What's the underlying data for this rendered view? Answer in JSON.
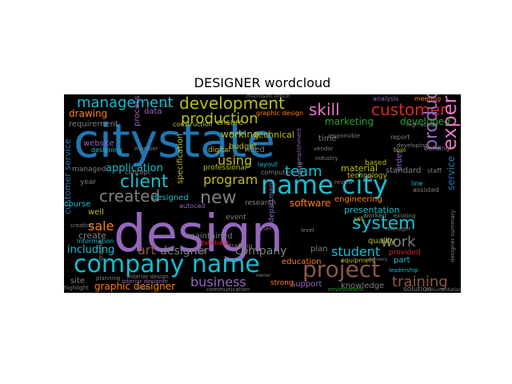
{
  "title": "DESIGNER wordcloud",
  "colors": {
    "background": "#000000",
    "palette": [
      "#1f77b4",
      "#ff7f0e",
      "#2ca02c",
      "#d62728",
      "#9467bd",
      "#8c564b",
      "#e377c2",
      "#7f7f7f",
      "#bcbd22",
      "#17becf"
    ]
  },
  "words": [
    {
      "text": "citystate",
      "color": "#1f77b4"
    },
    {
      "text": "design",
      "color": "#9467bd"
    },
    {
      "text": "company name",
      "color": "#17becf"
    },
    {
      "text": "name city",
      "color": "#17becf"
    },
    {
      "text": "project",
      "color": "#8c564b"
    },
    {
      "text": "development",
      "color": "#bcbd22"
    },
    {
      "text": "management",
      "color": "#17becf"
    },
    {
      "text": "skill",
      "color": "#e377c2"
    },
    {
      "text": "customer",
      "color": "#d62728"
    },
    {
      "text": "client",
      "color": "#17becf"
    },
    {
      "text": "production",
      "color": "#bcbd22"
    },
    {
      "text": "system",
      "color": "#17becf"
    },
    {
      "text": "experience",
      "color": "#e377c2"
    },
    {
      "text": "product",
      "color": "#9467bd"
    },
    {
      "text": "created",
      "color": "#7f7f7f"
    },
    {
      "text": "new",
      "color": "#7f7f7f"
    },
    {
      "text": "team",
      "color": "#17becf"
    },
    {
      "text": "sale",
      "color": "#ff7f0e"
    },
    {
      "text": "art",
      "color": "#8c564b"
    },
    {
      "text": "designer",
      "color": "#7f7f7f"
    },
    {
      "text": "company",
      "color": "#7f7f7f"
    },
    {
      "text": "work",
      "color": "#7f7f7f"
    },
    {
      "text": "business",
      "color": "#9467bd"
    },
    {
      "text": "training",
      "color": "#8c564b"
    },
    {
      "text": "program",
      "color": "#bcbd22"
    },
    {
      "text": "student",
      "color": "#17becf"
    },
    {
      "text": "application",
      "color": "#17becf"
    },
    {
      "text": "using",
      "color": "#bcbd22"
    },
    {
      "text": "software",
      "color": "#ff7f0e"
    },
    {
      "text": "including",
      "color": "#17becf"
    },
    {
      "text": "graphic designer",
      "color": "#ff7f0e"
    },
    {
      "text": "marketing",
      "color": "#2ca02c"
    },
    {
      "text": "developed",
      "color": "#2ca02c"
    },
    {
      "text": "working",
      "color": "#bcbd22"
    },
    {
      "text": "technical",
      "color": "#bcbd22"
    },
    {
      "text": "drawing",
      "color": "#ff7f0e"
    },
    {
      "text": "material",
      "color": "#bcbd22"
    },
    {
      "text": "presentation",
      "color": "#17becf"
    },
    {
      "text": "service",
      "color": "#1f77b4"
    },
    {
      "text": "customer service",
      "color": "#1f77b4"
    },
    {
      "text": "create",
      "color": "#7f7f7f"
    },
    {
      "text": "course",
      "color": "#17becf"
    },
    {
      "text": "designed",
      "color": "#17becf"
    },
    {
      "text": "maintained",
      "color": "#7f7f7f"
    },
    {
      "text": "engineering",
      "color": "#ff7f0e"
    },
    {
      "text": "standard",
      "color": "#7f7f7f"
    },
    {
      "text": "knowledge",
      "color": "#7f7f7f"
    },
    {
      "text": "quality",
      "color": "#bcbd22"
    },
    {
      "text": "support",
      "color": "#9467bd"
    },
    {
      "text": "education",
      "color": "#ff7f0e"
    },
    {
      "text": "plan",
      "color": "#7f7f7f"
    },
    {
      "text": "well",
      "color": "#bcbd22"
    },
    {
      "text": "part",
      "color": "#17becf"
    },
    {
      "text": "site",
      "color": "#7f7f7f"
    },
    {
      "text": "event",
      "color": "#7f7f7f"
    },
    {
      "text": "website",
      "color": "#9467bd"
    },
    {
      "text": "requirement",
      "color": "#7f7f7f"
    },
    {
      "text": "ensure",
      "color": "#bcbd22"
    },
    {
      "text": "budget",
      "color": "#bcbd22"
    },
    {
      "text": "need",
      "color": "#7f7f7f"
    },
    {
      "text": "process",
      "color": "#9467bd"
    },
    {
      "text": "data",
      "color": "#9467bd"
    },
    {
      "text": "year",
      "color": "#7f7f7f"
    },
    {
      "text": "managed",
      "color": "#7f7f7f"
    },
    {
      "text": "time",
      "color": "#7f7f7f"
    },
    {
      "text": "order",
      "color": "#9467bd"
    },
    {
      "text": "strong",
      "color": "#ff7f0e"
    },
    {
      "text": "solution",
      "color": "#7f7f7f"
    },
    {
      "text": "provided",
      "color": "#d62728"
    },
    {
      "text": "department",
      "color": "#9467bd"
    },
    {
      "text": "specification",
      "color": "#bcbd22"
    },
    {
      "text": "digital",
      "color": "#bcbd22"
    },
    {
      "text": "professional",
      "color": "#bcbd22"
    },
    {
      "text": "research",
      "color": "#7f7f7f"
    },
    {
      "text": "information",
      "color": "#17becf"
    },
    {
      "text": "designing",
      "color": "#17becf"
    },
    {
      "text": "based",
      "color": "#bcbd22"
    },
    {
      "text": "technology",
      "color": "#bcbd22"
    },
    {
      "text": "analysis",
      "color": "#9467bd"
    },
    {
      "text": "meeting",
      "color": "#ff7f0e"
    },
    {
      "text": "report",
      "color": "#7f7f7f"
    },
    {
      "text": "tool",
      "color": "#bcbd22"
    },
    {
      "text": "building",
      "color": "#7f7f7f"
    },
    {
      "text": "layout",
      "color": "#17becf"
    },
    {
      "text": "concept",
      "color": "#7f7f7f"
    },
    {
      "text": "construction",
      "color": "#bcbd22"
    },
    {
      "text": "autocad",
      "color": "#9467bd"
    },
    {
      "text": "database",
      "color": "#d62728"
    },
    {
      "text": "drafting",
      "color": "#7f7f7f"
    },
    {
      "text": "computer",
      "color": "#7f7f7f"
    },
    {
      "text": "graphic design",
      "color": "#ff7f0e"
    },
    {
      "text": "interior design",
      "color": "#7f7f7f"
    },
    {
      "text": "interior designer",
      "color": "#9467bd"
    },
    {
      "text": "communication",
      "color": "#7f7f7f"
    },
    {
      "text": "environment",
      "color": "#2ca02c"
    },
    {
      "text": "high school",
      "color": "#7f7f7f"
    },
    {
      "text": "leadership",
      "color": "#17becf"
    },
    {
      "text": "equipment",
      "color": "#bcbd22"
    },
    {
      "text": "worked",
      "color": "#7f7f7f"
    },
    {
      "text": "existing",
      "color": "#7f7f7f"
    },
    {
      "text": "line",
      "color": "#17becf"
    },
    {
      "text": "staff",
      "color": "#7f7f7f"
    },
    {
      "text": "assisted",
      "color": "#7f7f7f"
    },
    {
      "text": "planning",
      "color": "#7f7f7f"
    },
    {
      "text": "highlight",
      "color": "#7f7f7f"
    },
    {
      "text": "microsoft office",
      "color": "#7f7f7f"
    },
    {
      "text": "documentation",
      "color": "#7f7f7f"
    },
    {
      "text": "responsible",
      "color": "#7f7f7f"
    },
    {
      "text": "developing",
      "color": "#7f7f7f"
    },
    {
      "text": "set",
      "color": "#bcbd22"
    },
    {
      "text": "job",
      "color": "#7f7f7f"
    },
    {
      "text": "store",
      "color": "#7f7f7f"
    },
    {
      "text": "task",
      "color": "#7f7f7f"
    },
    {
      "text": "manager",
      "color": "#7f7f7f"
    },
    {
      "text": "accomplishment",
      "color": "#9467bd"
    },
    {
      "text": "designer summary",
      "color": "#7f7f7f"
    },
    {
      "text": "member",
      "color": "#7f7f7f"
    },
    {
      "text": "creating",
      "color": "#7f7f7f"
    },
    {
      "text": "graphic",
      "color": "#7f7f7f"
    },
    {
      "text": "cad",
      "color": "#7f7f7f"
    },
    {
      "text": "level",
      "color": "#7f7f7f"
    },
    {
      "text": "user",
      "color": "#7f7f7f"
    },
    {
      "text": "vendor",
      "color": "#7f7f7f"
    },
    {
      "text": "industry",
      "color": "#7f7f7f"
    },
    {
      "text": "review",
      "color": "#7f7f7f"
    },
    {
      "text": "delivery",
      "color": "#7f7f7f"
    },
    {
      "text": "build",
      "color": "#7f7f7f"
    },
    {
      "text": "owner",
      "color": "#7f7f7f"
    }
  ]
}
